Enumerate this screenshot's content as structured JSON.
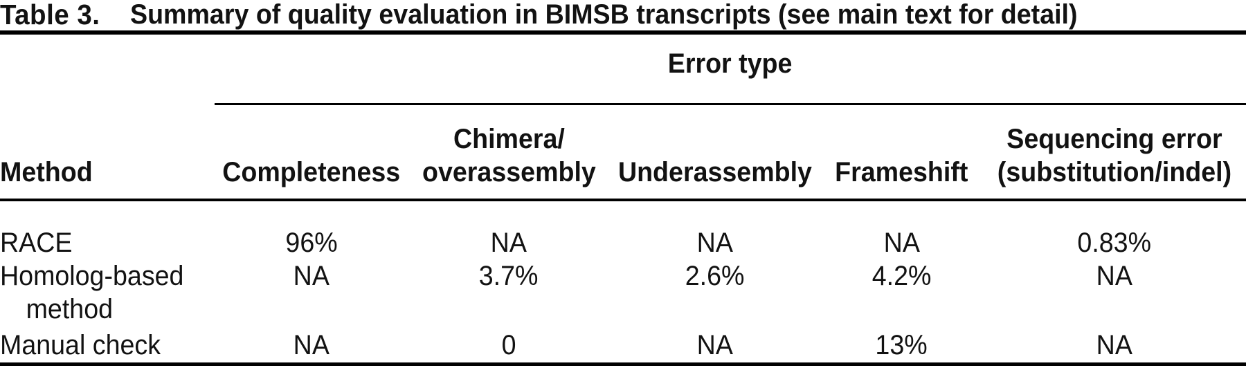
{
  "title": {
    "label": "Table 3.",
    "text": "Summary of quality evaluation in BIMSB transcripts (see main text for detail)"
  },
  "table": {
    "spanner": "Error type",
    "columns": [
      "Method",
      "Completeness",
      "Chimera/\noverassembly",
      "Underassembly",
      "Frameshift",
      "Sequencing error\n(substitution/indel)"
    ],
    "rows": [
      {
        "method": "RACE",
        "values": [
          "96%",
          "NA",
          "NA",
          "NA",
          "0.83%"
        ]
      },
      {
        "method": "Homolog-based\nmethod",
        "values": [
          "NA",
          "3.7%",
          "2.6%",
          "4.2%",
          "NA"
        ]
      },
      {
        "method": "Manual check",
        "values": [
          "NA",
          "0",
          "NA",
          "13%",
          "NA"
        ]
      }
    ]
  },
  "colors": {
    "text": "#121212",
    "rule": "#000000",
    "background": "#ffffff"
  }
}
